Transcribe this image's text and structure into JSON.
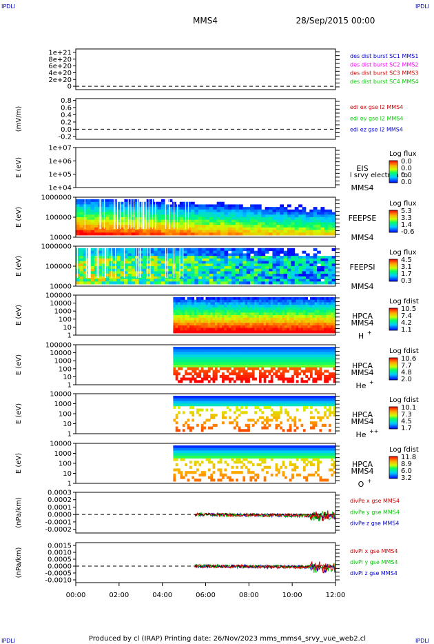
{
  "header": {
    "corner_left_top": "IPDLI",
    "corner_right_top": "IPDLI",
    "corner_left_bottom": "IPDLI",
    "corner_right_bottom": "IPDLI",
    "spacecraft": "MMS4",
    "date": "28/Sep/2015 00:00"
  },
  "footer": {
    "text": "Produced by cl (IRAP)   Printing date: 26/Nov/2023   mms_mms4_srvy_vue_web2.cl"
  },
  "time_axis": {
    "ticks": [
      "00:00",
      "02:00",
      "04:00",
      "06:00",
      "08:00",
      "10:00",
      "12:00"
    ]
  },
  "colors": {
    "mms1": "#0000cc",
    "mms2": "#ff00ff",
    "mms3": "#cc0000",
    "mms4": "#00cc00",
    "x": "#cc0000",
    "y": "#00cc00",
    "z": "#0000cc"
  },
  "chart_data": [
    {
      "type": "line",
      "id": "des",
      "ylim": [
        -1e+20,
        1.1e+21
      ],
      "yticks": [
        "1e+21",
        "8e+20",
        "6e+20",
        "4e+20",
        "2e+20",
        "0"
      ],
      "ytick_values": [
        1e+21,
        8e+20,
        6e+20,
        4e+20,
        2e+20,
        0
      ],
      "ylabel": "",
      "series": [
        {
          "name": "des dist burst SC1 MMS1",
          "color_key": "mms1",
          "values": []
        },
        {
          "name": "des dist burst SC2 MMS2",
          "color_key": "mms2",
          "values": []
        },
        {
          "name": "des dist burst SC3 MMS3",
          "color_key": "mms3",
          "values": []
        },
        {
          "name": "des dist burst SC4 MMS4",
          "color_key": "mms4",
          "values": []
        }
      ],
      "zero_line": true
    },
    {
      "type": "line",
      "id": "edi",
      "ylim": [
        -0.28,
        0.85
      ],
      "yticks": [
        "0.8",
        "0.6",
        "0.4",
        "0.2",
        "0.0",
        "-0.2"
      ],
      "ytick_values": [
        0.8,
        0.6,
        0.4,
        0.2,
        0.0,
        -0.2
      ],
      "ylabel": "(mV/m)",
      "series": [
        {
          "name": "edi ex gse l2 MMS4",
          "color_key": "x",
          "values": []
        },
        {
          "name": "edi ey gse l2 MMS4",
          "color_key": "y",
          "values": []
        },
        {
          "name": "edi ez gse l2 MMS4",
          "color_key": "z",
          "values": []
        }
      ],
      "zero_line": true
    },
    {
      "type": "heatmap",
      "id": "eis",
      "yscale": "log",
      "yticks": [
        "1e+07",
        "1e+06",
        "1e+05",
        "1e+04"
      ],
      "ylabel": "E (eV)",
      "labels": [
        "EIS",
        "MMS4"
      ],
      "overlay_text": "l srvy electron to",
      "cbar_title": "Log flux",
      "cbar_ticks": [
        "0.0",
        "0.0",
        "0.0",
        "0.0"
      ],
      "start_hour": null
    },
    {
      "type": "heatmap",
      "id": "feepse",
      "yscale": "log",
      "yticks": [
        "1000000",
        "100000",
        "10000"
      ],
      "ylabel": "E (eV)",
      "labels": [
        "FEEPSE",
        "MMS4"
      ],
      "cbar_title": "Log flux",
      "cbar_ticks": [
        "5.3",
        "3.3",
        "1.4",
        "-0.6"
      ],
      "start_hour": 0
    },
    {
      "type": "heatmap",
      "id": "feepsi",
      "yscale": "log",
      "yticks": [
        "1000000",
        "100000",
        "10000"
      ],
      "ylabel": "E (eV)",
      "labels": [
        "FEEPSI",
        "MMS4"
      ],
      "cbar_title": "Log flux",
      "cbar_ticks": [
        "4.5",
        "3.1",
        "1.7",
        "0.3"
      ],
      "start_hour": 0
    },
    {
      "type": "heatmap",
      "id": "hpca_h",
      "yscale": "log",
      "yticks": [
        "100000",
        "10000",
        "1000",
        "100",
        "10",
        "1"
      ],
      "ylabel": "E (eV)",
      "labels": [
        "HPCA",
        "MMS4"
      ],
      "species": "H",
      "species_sup": "+",
      "cbar_title": "Log fdist",
      "cbar_ticks": [
        "10.5",
        "7.4",
        "4.2",
        "1.1"
      ],
      "start_hour": 4.5
    },
    {
      "type": "heatmap",
      "id": "hpca_he",
      "yscale": "log",
      "yticks": [
        "100000",
        "10000",
        "1000",
        "100",
        "10",
        "1"
      ],
      "ylabel": "E (eV)",
      "labels": [
        "HPCA",
        "MMS4"
      ],
      "species": "He",
      "species_sup": "+",
      "cbar_title": "Log fdist",
      "cbar_ticks": [
        "10.6",
        "7.7",
        "4.8",
        "2.0"
      ],
      "start_hour": 4.5
    },
    {
      "type": "heatmap",
      "id": "hpca_hepp",
      "yscale": "log",
      "yticks": [
        "10000",
        "1000",
        "100",
        "10",
        "1"
      ],
      "ylabel": "E (eV)",
      "labels": [
        "HPCA",
        "MMS4"
      ],
      "species": "He",
      "species_sup": "++",
      "cbar_title": "Log fdist",
      "cbar_ticks": [
        "10.1",
        "7.3",
        "4.5",
        "1.7"
      ],
      "start_hour": 4.5
    },
    {
      "type": "heatmap",
      "id": "hpca_o",
      "yscale": "log",
      "yticks": [
        "10000",
        "1000",
        "100",
        "10",
        "1"
      ],
      "ylabel": "E (eV)",
      "labels": [
        "HPCA",
        "MMS4"
      ],
      "species": "O",
      "species_sup": "+",
      "cbar_title": "Log fdist",
      "cbar_ticks": [
        "11.8",
        "8.9",
        "6.0",
        "3.2"
      ],
      "start_hour": 4.5
    },
    {
      "type": "line",
      "id": "divpe",
      "ylim": [
        -0.00025,
        0.0003
      ],
      "yticks": [
        "0.0003",
        "0.0002",
        "0.0001",
        "0.0000",
        "-0.0001",
        "-0.0002"
      ],
      "ytick_values": [
        0.0003,
        0.0002,
        0.0001,
        0.0,
        -0.0001,
        -0.0002
      ],
      "ylabel": "(nPa/km)",
      "series": [
        {
          "name": "divPe x gse MMS4",
          "color_key": "x"
        },
        {
          "name": "divPe y gse MMS4",
          "color_key": "y"
        },
        {
          "name": "divPe z gse MMS4",
          "color_key": "z"
        }
      ],
      "start_hour": 5.5,
      "zero_line": true
    },
    {
      "type": "line",
      "id": "divpi",
      "ylim": [
        -0.0012,
        0.0017
      ],
      "yticks": [
        "0.0015",
        "0.0010",
        "0.0005",
        "0.0000",
        "-0.0005",
        "-0.0010"
      ],
      "ytick_values": [
        0.0015,
        0.001,
        0.0005,
        0.0,
        -0.0005,
        -0.001
      ],
      "ylabel": "(nPa/km)",
      "series": [
        {
          "name": "divPi x gse MMS4",
          "color_key": "x"
        },
        {
          "name": "divPi y gse MMS4",
          "color_key": "y"
        },
        {
          "name": "divPi z gse MMS4",
          "color_key": "z"
        }
      ],
      "start_hour": 5.5,
      "zero_line": true
    }
  ]
}
